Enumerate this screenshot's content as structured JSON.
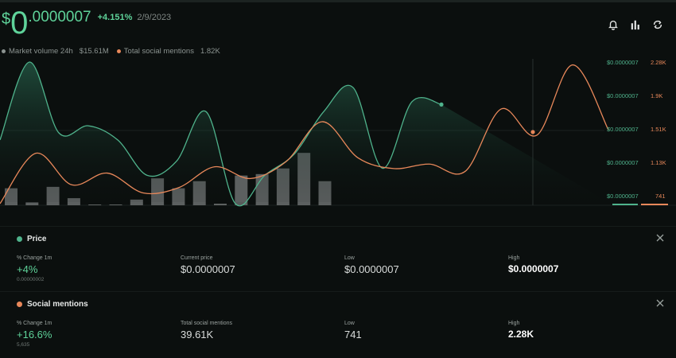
{
  "header": {
    "currency": "$",
    "price_big": "0",
    "price_rest": ".0000007",
    "change_pct": "+4.151%",
    "date": "2/9/2023",
    "icons": [
      "bell-icon",
      "bar-chart-icon",
      "share-icon"
    ]
  },
  "legend": {
    "volume_label": "Market volume 24h",
    "volume_value": "$15.61M",
    "mentions_label": "Total social mentions",
    "mentions_value": "1.82K"
  },
  "colors": {
    "price": "#4fb38c",
    "social": "#e8885a",
    "green_text": "#5fd39a",
    "background": "#0b0f0e"
  },
  "chart_data": {
    "type": "line",
    "y_axis_price": [
      "$0.0000007",
      "$0.0000007",
      "$0.0000007",
      "$0.0000007",
      "$0.0000007"
    ],
    "y_axis_social": [
      "2.28K",
      "1.9K",
      "1.51K",
      "1.13K",
      "741"
    ],
    "series": [
      {
        "name": "Price",
        "values": [
          0.45,
          1.0,
          0.5,
          0.55,
          0.45,
          0.2,
          0.3,
          0.65,
          0.0,
          0.2,
          0.35,
          0.65,
          0.82,
          0.25,
          0.72,
          0.7
        ]
      },
      {
        "name": "Social mentions",
        "values": [
          741,
          1300,
          950,
          1080,
          860,
          920,
          1150,
          1020,
          1210,
          1650,
          1250,
          1130,
          1180,
          1100,
          1790,
          1500,
          2280,
          1560
        ]
      }
    ],
    "volume_bars": [
      0.12,
      0.02,
      0.13,
      0.05,
      0.0,
      0.0,
      0.04,
      0.19,
      0.12,
      0.17,
      0.01,
      0.21,
      0.22,
      0.26,
      0.37,
      0.17
    ]
  },
  "panels": {
    "price": {
      "title": "Price",
      "change_label": "% Change 1m",
      "change_value": "+4%",
      "change_sub": "0.00000002",
      "current_label": "Current price",
      "current_value": "$0.0000007",
      "low_label": "Low",
      "low_value": "$0.0000007",
      "high_label": "High",
      "high_value": "$0.0000007"
    },
    "social": {
      "title": "Social mentions",
      "change_label": "% Change 1m",
      "change_value": "+16.6%",
      "change_sub": "5,635",
      "total_label": "Total social mentions",
      "total_value": "39.61K",
      "low_label": "Low",
      "low_value": "741",
      "high_label": "High",
      "high_value": "2.28K"
    }
  }
}
